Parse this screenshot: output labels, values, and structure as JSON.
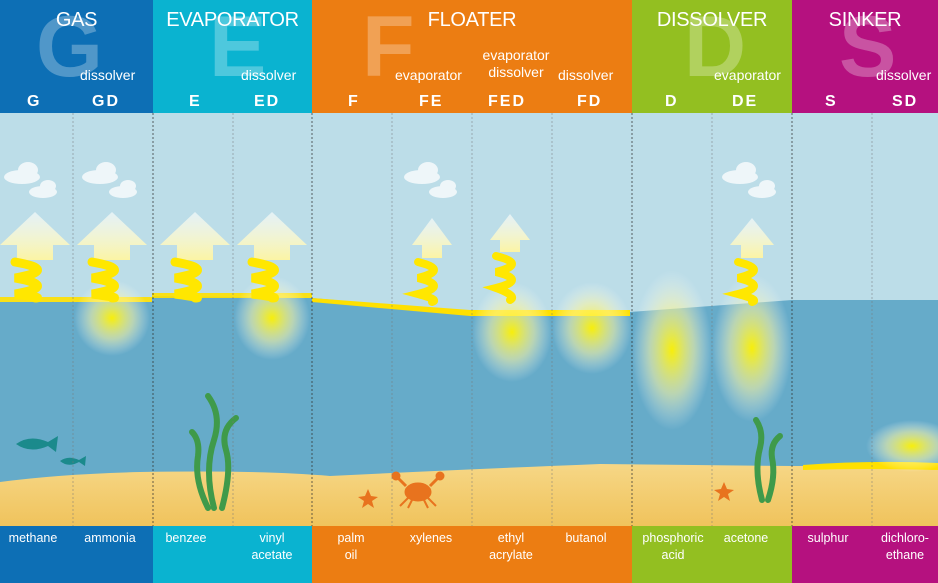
{
  "colors": {
    "gas": "#0d6fb5",
    "evaporator": "#0ab3d0",
    "floater": "#ec7d12",
    "dissolver": "#93bf21",
    "sinker": "#b5117f",
    "sky": "#bcdde8",
    "sea": "#66abc9",
    "sand": "#f3cc6e",
    "plume": "#fff200"
  },
  "categories": [
    {
      "key": "gas",
      "letter": "G",
      "title": "GAS",
      "extra_label": "dissolver",
      "codes": [
        "G",
        "GD"
      ],
      "substances": [
        "methane",
        "ammonia"
      ]
    },
    {
      "key": "evaporator",
      "letter": "E",
      "title": "EVAPORATOR",
      "extra_label": "dissolver",
      "codes": [
        "E",
        "ED"
      ],
      "substances": [
        "benzee",
        "vinyl\nacetate"
      ]
    },
    {
      "key": "floater",
      "letter": "F",
      "title": "FLOATER",
      "labels": [
        "evaporator",
        "evaporator\ndissolver",
        "dissolver"
      ],
      "codes": [
        "F",
        "FE",
        "FED",
        "FD"
      ],
      "substances": [
        "palm\noil",
        "xylenes",
        "ethyl\nacrylate",
        "butanol"
      ]
    },
    {
      "key": "dissolver",
      "letter": "D",
      "title": "DISSOLVER",
      "extra_label": "evaporator",
      "codes": [
        "D",
        "DE"
      ],
      "substances": [
        "phosphoric\nacid",
        "acetone"
      ]
    },
    {
      "key": "sinker",
      "letter": "S",
      "title": "SINKER",
      "extra_label": "dissolver",
      "codes": [
        "S",
        "SD"
      ],
      "substances": [
        "sulphur",
        "dichloro-\nethane"
      ]
    }
  ],
  "icons": [
    "cloud-icon",
    "upward-arrow-icon",
    "fish-icon",
    "seaweed-icon",
    "crab-icon",
    "starfish-icon"
  ]
}
